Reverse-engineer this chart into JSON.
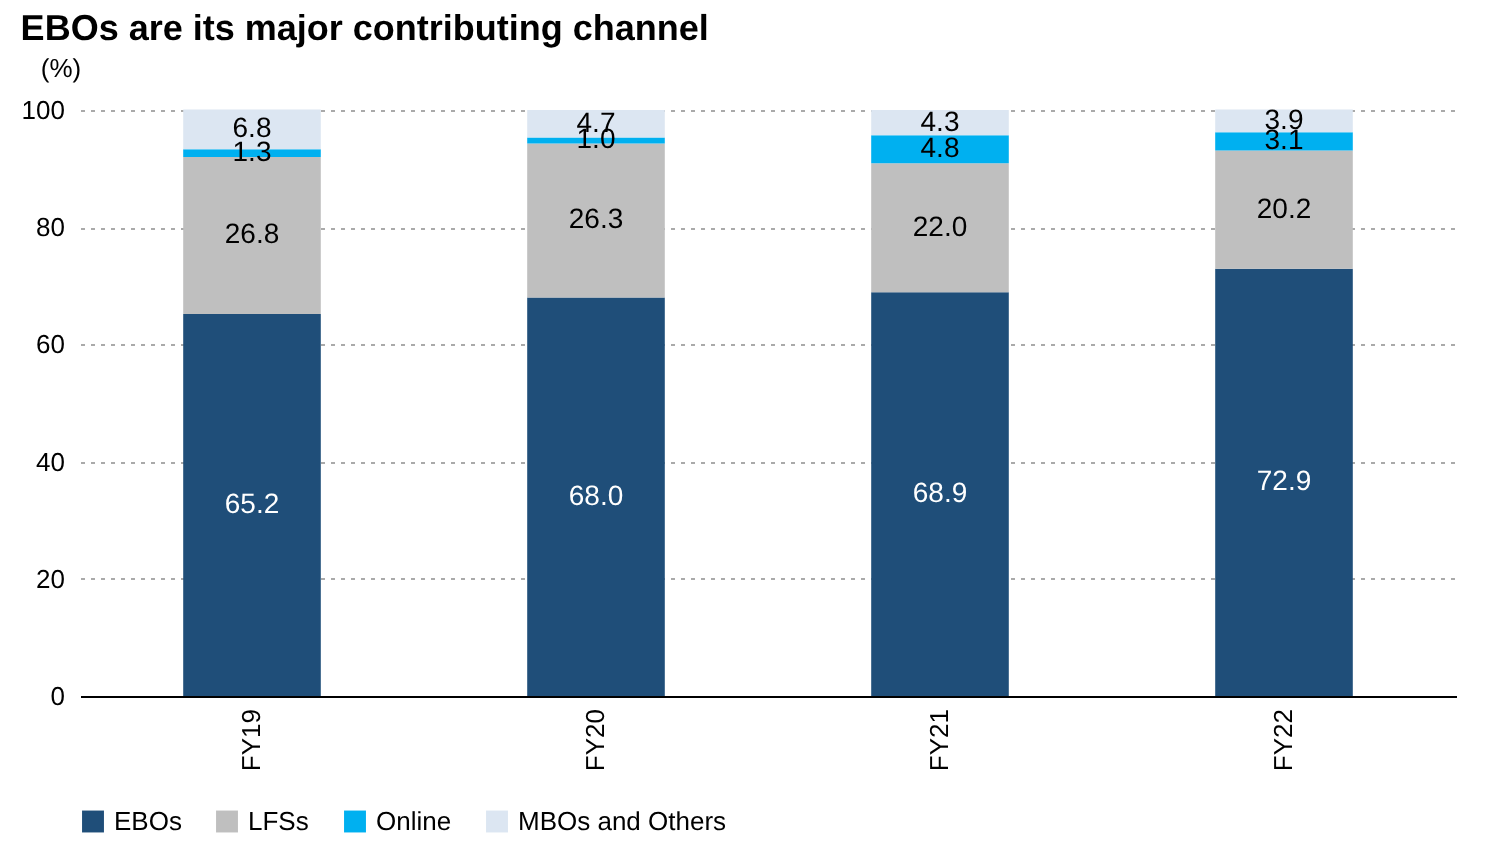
{
  "chart_data": {
    "type": "bar",
    "title": "EBOs are its major contributing channel",
    "ylabel": "(%)",
    "categories": [
      "FY19",
      "FY20",
      "FY21",
      "FY22"
    ],
    "stacked": true,
    "series": [
      {
        "name": "EBOs",
        "color": "#1f4e79",
        "values": [
          65.2,
          68.0,
          68.9,
          72.9
        ],
        "value_labels": [
          "65.2",
          "68.0",
          "68.9",
          "72.9"
        ]
      },
      {
        "name": "LFSs",
        "color": "#bfbfbf",
        "values": [
          26.8,
          26.3,
          22.0,
          20.2
        ],
        "value_labels": [
          "26.8",
          "26.3",
          "22.0",
          "20.2"
        ]
      },
      {
        "name": "Online",
        "color": "#00b0f0",
        "values": [
          1.3,
          1.0,
          4.8,
          3.1
        ],
        "value_labels": [
          "1.3",
          "1.0",
          "4.8",
          "3.1"
        ]
      },
      {
        "name": "MBOs and Others",
        "color": "#dce6f2",
        "values": [
          6.8,
          4.7,
          4.3,
          3.9
        ],
        "value_labels": [
          "6.8",
          "4.7",
          "4.3",
          "3.9"
        ]
      }
    ],
    "ylim": [
      0,
      100
    ],
    "yticks": [
      0,
      20,
      40,
      60,
      80,
      100
    ],
    "grid": "y",
    "legend": "bottom"
  }
}
